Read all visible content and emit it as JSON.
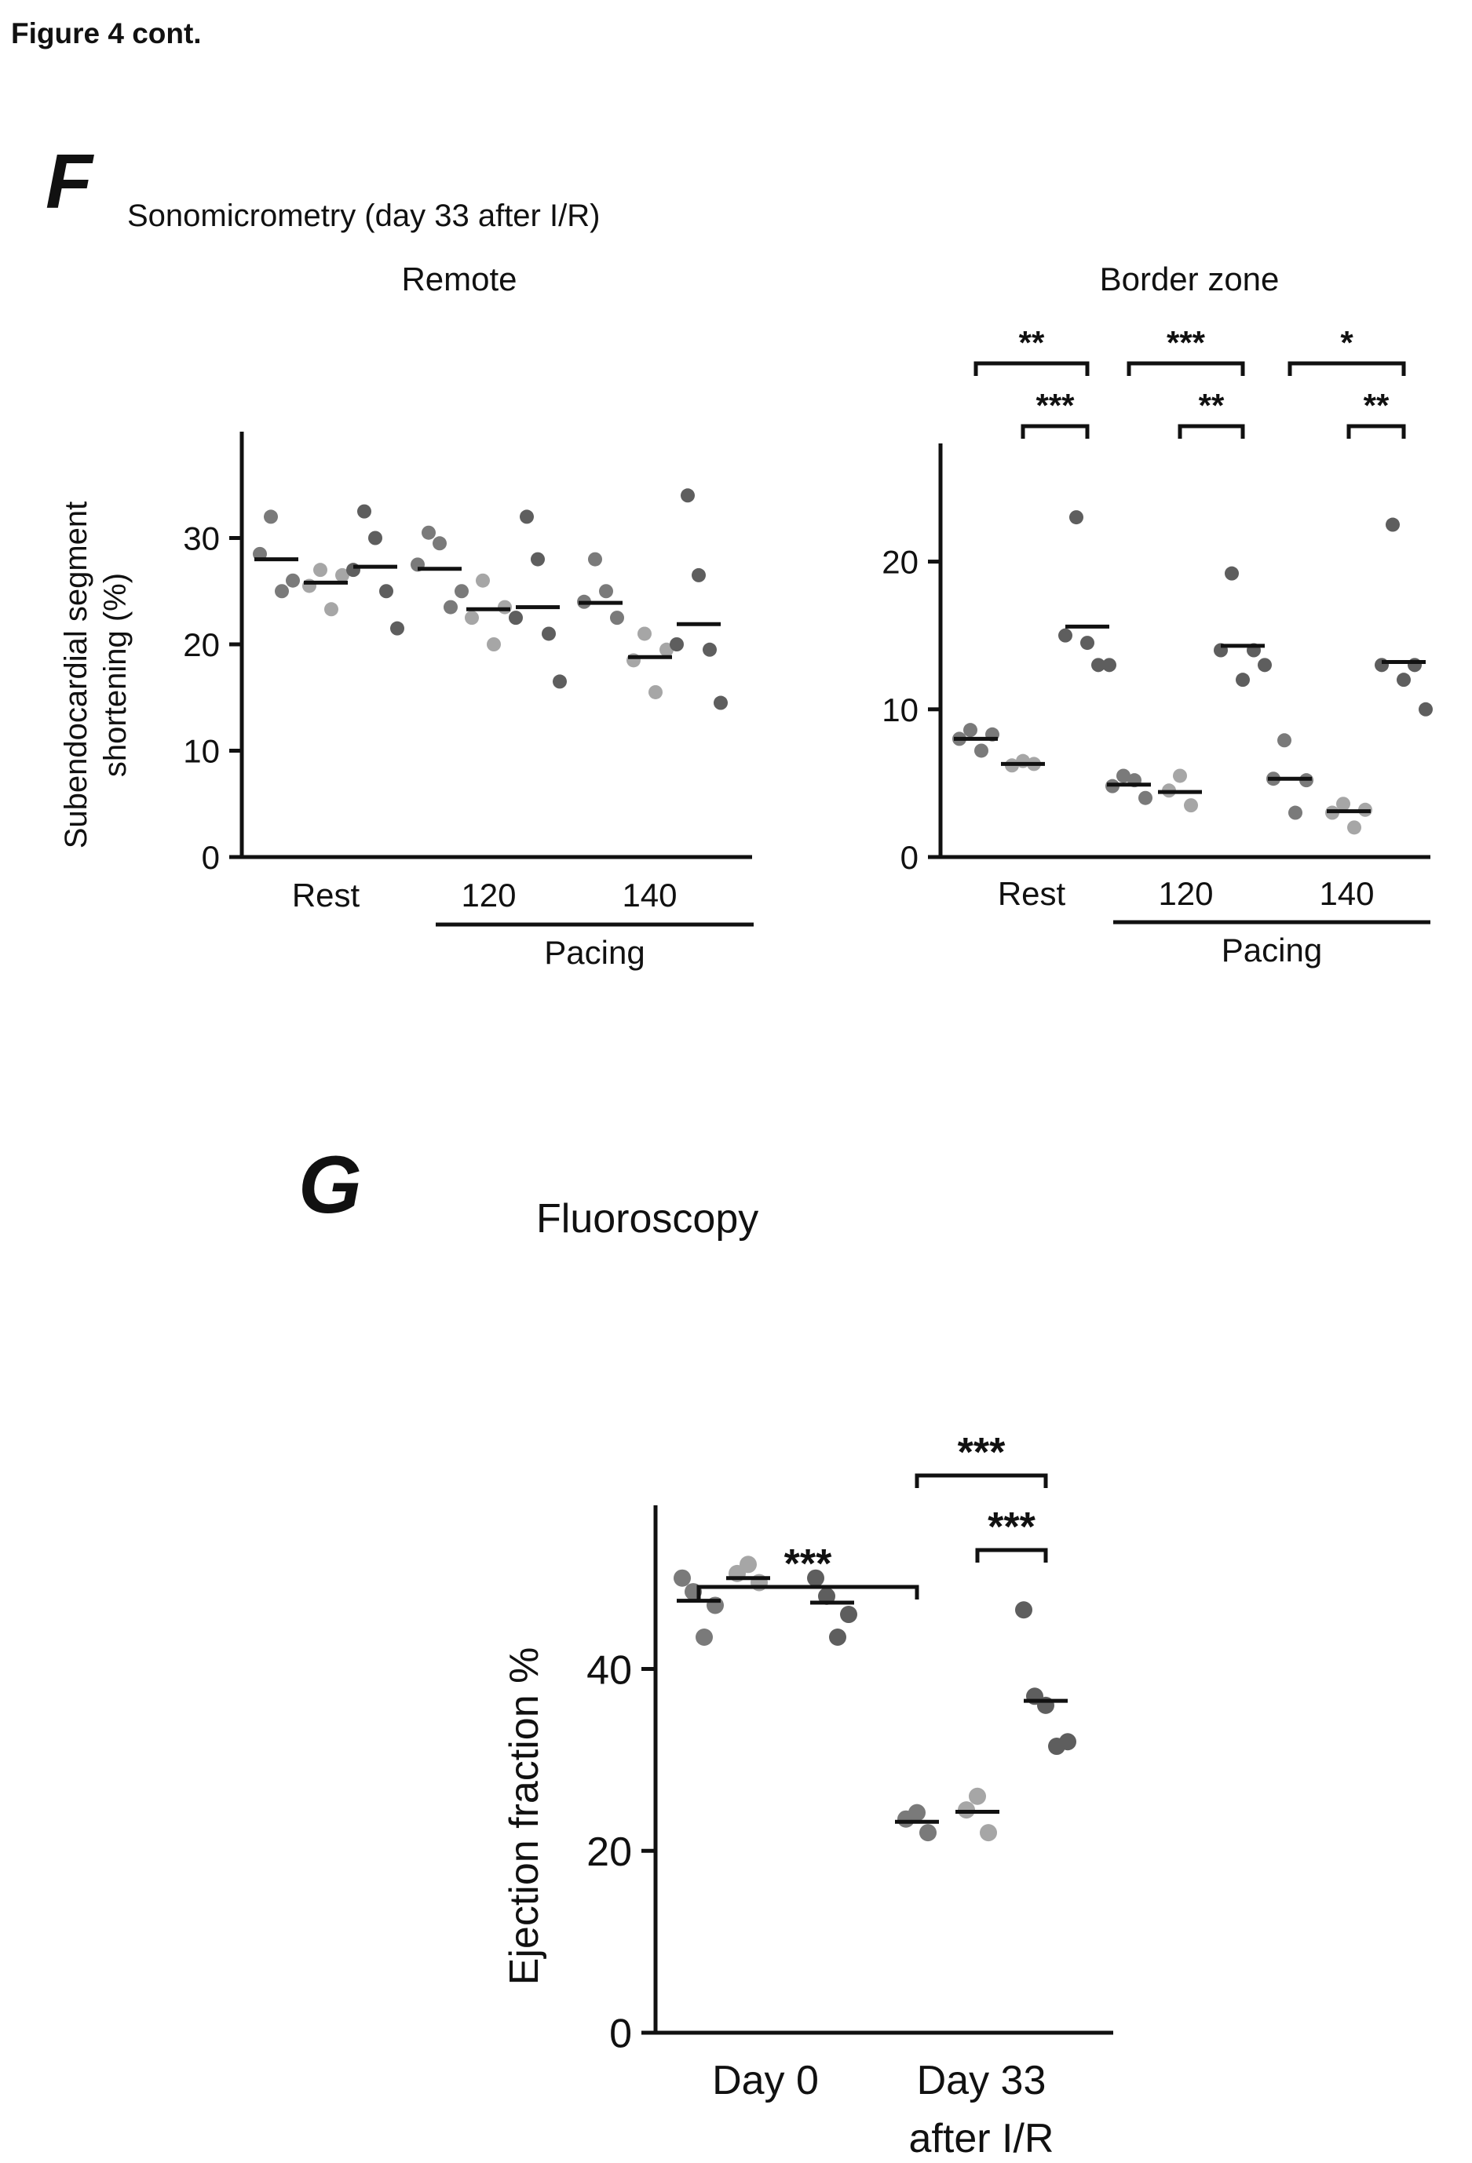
{
  "header": "Figure 4 cont.",
  "colors": {
    "group1": "#7a7a7a",
    "group2": "#a6a6a6",
    "group3": "#5e5e5e",
    "mean_line": "#111111"
  },
  "panel_f": {
    "letter": "F",
    "subtitle": "Sonomicrometry (day 33 after I/R)",
    "ylabel_line1": "Subendocardial segment",
    "ylabel_line2": "shortening (%)",
    "pacing_label": "Pacing"
  },
  "panel_g": {
    "letter": "G",
    "subtitle": "Fluoroscopy"
  },
  "chart_data": [
    {
      "type": "scatter",
      "title": "Remote",
      "ylabel": "Subendocardial segment shortening (%)",
      "ylim": [
        0,
        40
      ],
      "yticks": [
        0,
        10,
        20,
        30
      ],
      "categories": [
        "Rest",
        "120",
        "140"
      ],
      "group_label": {
        "text": "Pacing",
        "spans": [
          "120",
          "140"
        ]
      },
      "series_per_category": 3,
      "points": [
        [
          [
            28.5,
            32,
            25,
            26
          ],
          [
            25.5,
            27,
            23.3,
            26.5
          ],
          [
            27,
            32.5,
            30,
            25,
            21.5
          ]
        ],
        [
          [
            27.5,
            30.5,
            29.5,
            23.5,
            25
          ],
          [
            22.5,
            26,
            20,
            23.5
          ],
          [
            22.5,
            32,
            28,
            21,
            16.5
          ]
        ],
        [
          [
            24,
            28,
            25,
            22.5
          ],
          [
            18.5,
            21,
            15.5,
            19.5
          ],
          [
            20,
            34,
            26.5,
            19.5,
            14.5
          ]
        ]
      ],
      "means": [
        [
          28,
          25.8,
          27.3
        ],
        [
          27.1,
          23.3,
          23.5
        ],
        [
          23.9,
          18.8,
          21.9
        ]
      ],
      "significance": []
    },
    {
      "type": "scatter",
      "title": "Border zone",
      "ylim": [
        0,
        28
      ],
      "yticks": [
        0,
        10,
        20
      ],
      "categories": [
        "Rest",
        "120",
        "140"
      ],
      "group_label": {
        "text": "Pacing",
        "spans": [
          "120",
          "140"
        ]
      },
      "series_per_category": 3,
      "points": [
        [
          [
            8,
            8.6,
            7.2,
            8.3
          ],
          [
            6.2,
            6.5,
            6.3
          ],
          [
            15,
            23,
            14.5,
            13,
            13
          ]
        ],
        [
          [
            4.8,
            5.5,
            5.2,
            4
          ],
          [
            4.5,
            5.5,
            3.5
          ],
          [
            14,
            19.2,
            12,
            14,
            13
          ]
        ],
        [
          [
            5.3,
            7.9,
            3,
            5.2
          ],
          [
            3,
            3.6,
            2,
            3.2
          ],
          [
            13,
            22.5,
            12,
            13,
            10
          ]
        ]
      ],
      "means": [
        [
          8,
          6.3,
          15.6
        ],
        [
          4.9,
          4.4,
          14.3
        ],
        [
          5.3,
          3.1,
          13.2
        ]
      ],
      "significance": [
        {
          "category": "Rest",
          "from": 1,
          "to": 3,
          "label": "**"
        },
        {
          "category": "Rest",
          "from": 2,
          "to": 3,
          "label": "***"
        },
        {
          "category": "120",
          "from": 1,
          "to": 3,
          "label": "***"
        },
        {
          "category": "120",
          "from": 2,
          "to": 3,
          "label": "**"
        },
        {
          "category": "140",
          "from": 1,
          "to": 3,
          "label": "*"
        },
        {
          "category": "140",
          "from": 2,
          "to": 3,
          "label": "**"
        }
      ]
    },
    {
      "type": "scatter",
      "ylabel": "Ejection fraction %",
      "ylim": [
        0,
        58
      ],
      "yticks": [
        0,
        20,
        40
      ],
      "categories": [
        "Day 0",
        "Day 33|after I/R"
      ],
      "series_per_category": 3,
      "points": [
        [
          [
            50,
            48.5,
            43.5,
            47
          ],
          [
            50.5,
            51.5,
            49.5
          ],
          [
            50,
            48,
            43.5,
            46
          ]
        ],
        [
          [
            23.5,
            24.2,
            22
          ],
          [
            24.5,
            26,
            22
          ],
          [
            46.5,
            37,
            36,
            31.5,
            32
          ]
        ]
      ],
      "means": [
        [
          47.5,
          50,
          47.3
        ],
        [
          23.2,
          24.3,
          36.5
        ]
      ],
      "significance": [
        {
          "from_cat": "Day 0",
          "to_cat": "Day 33|after I/R",
          "label": "***"
        },
        {
          "category": "Day 33|after I/R",
          "from": 1,
          "to": 3,
          "label": "***"
        },
        {
          "category": "Day 33|after I/R",
          "from": 2,
          "to": 3,
          "label": "***"
        }
      ]
    }
  ]
}
